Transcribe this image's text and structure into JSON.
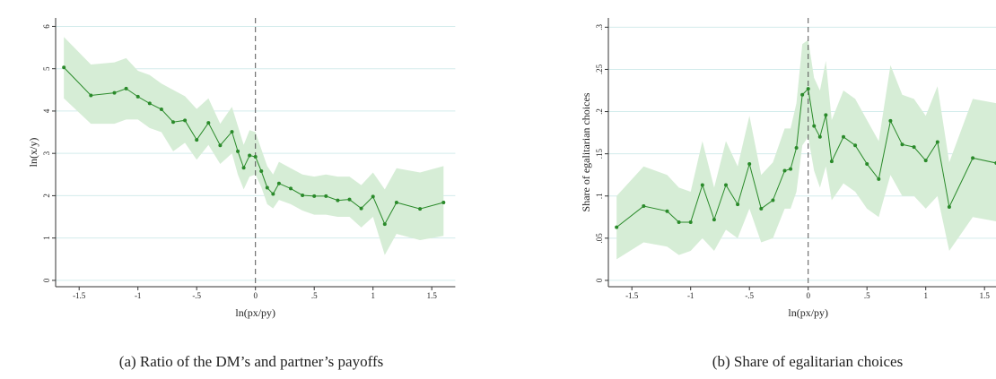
{
  "chart_data": [
    {
      "type": "line",
      "title": "(a) Ratio of the DM’s and partner’s payoffs",
      "x_label": "ln(px/py)",
      "y_label": "ln(x/y)",
      "x": [
        -1.63,
        -1.4,
        -1.2,
        -1.1,
        -1,
        -0.9,
        -0.8,
        -0.7,
        -0.6,
        -0.5,
        -0.4,
        -0.3,
        -0.2,
        -0.15,
        -0.1,
        -0.05,
        0,
        0.05,
        0.1,
        0.15,
        0.2,
        0.3,
        0.4,
        0.5,
        0.6,
        0.7,
        0.8,
        0.9,
        1,
        1.1,
        1.2,
        1.4,
        1.6
      ],
      "series": [
        {
          "color": "#2a8a2a",
          "band_color": "#d6edd6",
          "values": [
            5.03,
            4.37,
            4.43,
            4.53,
            4.34,
            4.18,
            4.04,
            3.74,
            3.78,
            3.32,
            3.72,
            3.19,
            3.51,
            3.05,
            2.66,
            2.95,
            2.92,
            2.58,
            2.19,
            2.04,
            2.29,
            2.17,
            2.01,
            1.99,
            1.99,
            1.89,
            1.91,
            1.7,
            1.98,
            1.33,
            1.84,
            1.69,
            1.84
          ],
          "ci_lower": [
            4.3,
            3.7,
            3.7,
            3.8,
            3.8,
            3.6,
            3.5,
            3.05,
            3.25,
            2.85,
            3.2,
            2.75,
            3.0,
            2.5,
            2.15,
            2.45,
            2.5,
            2.2,
            1.8,
            1.7,
            1.9,
            1.8,
            1.65,
            1.55,
            1.55,
            1.5,
            1.5,
            1.25,
            1.5,
            0.6,
            1.1,
            0.95,
            1.05
          ],
          "ci_upper": [
            5.75,
            5.1,
            5.15,
            5.25,
            4.95,
            4.85,
            4.65,
            4.5,
            4.35,
            4.05,
            4.3,
            3.7,
            4.1,
            3.65,
            3.2,
            3.55,
            3.5,
            3.1,
            2.7,
            2.5,
            2.8,
            2.65,
            2.5,
            2.45,
            2.5,
            2.45,
            2.45,
            2.25,
            2.55,
            2.15,
            2.65,
            2.55,
            2.7
          ]
        }
      ],
      "xlim": [
        -1.7,
        1.7
      ],
      "ylim": [
        -0.15,
        6.2
      ],
      "xticks": [
        -1.5,
        -1,
        {
          "value": -0.5,
          "label": "-.5"
        },
        0,
        {
          "value": 0.5,
          "label": ".5"
        },
        1,
        1.5
      ],
      "yticks": [
        0,
        1,
        2,
        3,
        4,
        5,
        6
      ],
      "grid": true,
      "vline": 0
    },
    {
      "type": "line",
      "title": "(b) Share of egalitarian choices",
      "x_label": "ln(px/py)",
      "y_label": "Share of egalitarian choices",
      "x": [
        -1.63,
        -1.4,
        -1.2,
        -1.1,
        -1,
        -0.9,
        -0.8,
        -0.7,
        -0.6,
        -0.5,
        -0.4,
        -0.3,
        -0.2,
        -0.15,
        -0.1,
        -0.05,
        0,
        0.05,
        0.1,
        0.15,
        0.2,
        0.3,
        0.4,
        0.5,
        0.6,
        0.7,
        0.8,
        0.9,
        1,
        1.1,
        1.2,
        1.4,
        1.6
      ],
      "series": [
        {
          "color": "#2a8a2a",
          "band_color": "#d6edd6",
          "values": [
            0.063,
            0.088,
            0.082,
            0.069,
            0.069,
            0.113,
            0.072,
            0.113,
            0.09,
            0.138,
            0.085,
            0.095,
            0.13,
            0.132,
            0.157,
            0.22,
            0.227,
            0.183,
            0.17,
            0.196,
            0.141,
            0.17,
            0.16,
            0.138,
            0.12,
            0.189,
            0.161,
            0.158,
            0.142,
            0.164,
            0.087,
            0.145,
            0.139
          ],
          "ci_lower": [
            0.025,
            0.045,
            0.04,
            0.03,
            0.035,
            0.05,
            0.035,
            0.06,
            0.05,
            0.085,
            0.045,
            0.05,
            0.085,
            0.085,
            0.105,
            0.16,
            0.17,
            0.13,
            0.11,
            0.135,
            0.095,
            0.115,
            0.105,
            0.085,
            0.075,
            0.125,
            0.1,
            0.1,
            0.085,
            0.1,
            0.035,
            0.075,
            0.07
          ],
          "ci_upper": [
            0.1,
            0.135,
            0.125,
            0.11,
            0.105,
            0.165,
            0.11,
            0.165,
            0.135,
            0.195,
            0.125,
            0.14,
            0.18,
            0.18,
            0.21,
            0.28,
            0.285,
            0.24,
            0.225,
            0.26,
            0.19,
            0.225,
            0.215,
            0.19,
            0.165,
            0.255,
            0.22,
            0.215,
            0.195,
            0.23,
            0.14,
            0.215,
            0.21
          ]
        }
      ],
      "xlim": [
        -1.7,
        1.7
      ],
      "ylim": [
        -0.0075,
        0.311
      ],
      "xticks": [
        -1.5,
        -1,
        {
          "value": -0.5,
          "label": "-.5"
        },
        0,
        {
          "value": 0.5,
          "label": ".5"
        },
        1,
        1.5
      ],
      "yticks": [
        0,
        {
          "value": 0.05,
          "label": ".05"
        },
        {
          "value": 0.1,
          "label": ".1"
        },
        {
          "value": 0.15,
          "label": ".15"
        },
        {
          "value": 0.2,
          "label": ".2"
        },
        {
          "value": 0.25,
          "label": ".25"
        },
        {
          "value": 0.3,
          "label": ".3"
        }
      ],
      "grid": true,
      "vline": 0
    }
  ]
}
